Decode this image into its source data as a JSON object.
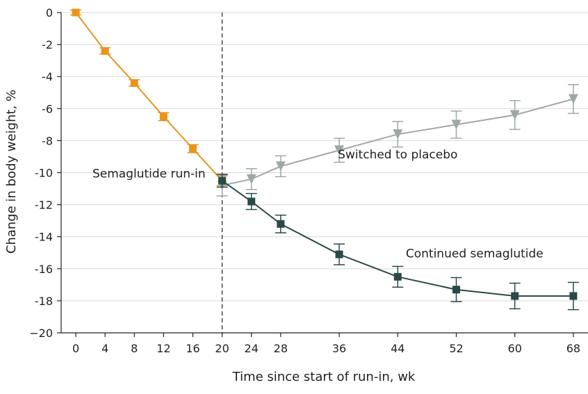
{
  "chart_data": {
    "type": "line",
    "title": "",
    "xlabel": "Time since start of run-in, wk",
    "ylabel": "Change in body weight, %",
    "xlim": [
      -2,
      70
    ],
    "ylim": [
      -20,
      0
    ],
    "x_ticks": [
      0,
      4,
      8,
      12,
      16,
      20,
      24,
      28,
      36,
      44,
      52,
      60,
      68
    ],
    "y_ticks": [
      0,
      -2,
      -4,
      -6,
      -8,
      -10,
      -12,
      -14,
      -16,
      -18,
      -20
    ],
    "y_tick_labels": [
      "0",
      "-2",
      "-4",
      "-6",
      "-8",
      "-10",
      "-12",
      "-14",
      "-16",
      "-18",
      "−20"
    ],
    "grid": "horizontal",
    "reference_line": {
      "x": 20,
      "style": "dashed",
      "color": "#231f20"
    },
    "series": [
      {
        "name": "Semaglutide run-in",
        "color": "#e8951e",
        "marker": "square",
        "x": [
          0,
          4,
          8,
          12,
          16,
          20
        ],
        "y": [
          0,
          -2.4,
          -4.4,
          -6.5,
          -8.5,
          -10.5
        ],
        "err": [
          0.15,
          0.2,
          0.2,
          0.25,
          0.25,
          0.3
        ]
      },
      {
        "name": "Switched to placebo",
        "color": "#9ea8a3",
        "marker": "triangle-down",
        "x": [
          20,
          24,
          28,
          36,
          44,
          52,
          60,
          68
        ],
        "y": [
          -10.8,
          -10.4,
          -9.6,
          -8.6,
          -7.6,
          -7.0,
          -6.4,
          -5.4
        ],
        "err": [
          0.65,
          0.65,
          0.65,
          0.75,
          0.8,
          0.85,
          0.9,
          0.9
        ]
      },
      {
        "name": "Continued semaglutide",
        "color": "#2a4a48",
        "marker": "square",
        "x": [
          20,
          24,
          28,
          36,
          44,
          52,
          60,
          68
        ],
        "y": [
          -10.5,
          -11.8,
          -13.2,
          -15.1,
          -16.5,
          -17.3,
          -17.7,
          -17.7
        ],
        "err": [
          0.4,
          0.5,
          0.55,
          0.65,
          0.65,
          0.75,
          0.8,
          0.85
        ]
      }
    ],
    "annotations": [
      {
        "text": "Semaglutide run-in",
        "x": 10,
        "y": -10.3
      },
      {
        "text": "Switched to placebo",
        "x": 44,
        "y": -9.1
      },
      {
        "text": "Continued semaglutide",
        "x": 54.5,
        "y": -15.3
      }
    ]
  }
}
